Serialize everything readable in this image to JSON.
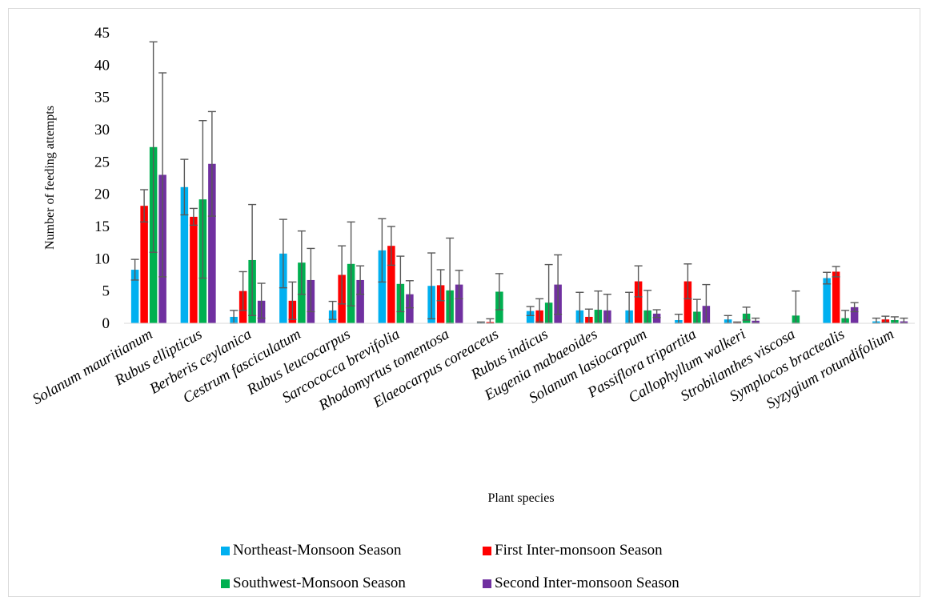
{
  "chart_data": {
    "type": "bar",
    "title": "",
    "xlabel": "Plant species",
    "ylabel": "Number of feeding attempts",
    "ylim": [
      0,
      45
    ],
    "yticks": [
      0,
      5,
      10,
      15,
      20,
      25,
      30,
      35,
      40,
      45
    ],
    "grid": false,
    "legend_position": "bottom",
    "categories": [
      "Solanum mauritianum",
      "Rubus ellipticus",
      "Berberis ceylanica",
      "Cestrum fasciculatum",
      "Rubus leucocarpus",
      "Sarcococca brevifolia",
      "Rhodomyrtus tomentosa",
      "Elaeocarpus coreaceus",
      "Rubus indicus",
      "Eugenia mabaeoides",
      "Solanum lasiocarpum",
      "Passiflora tripartita",
      "Callophyllum walkeri",
      "Strobilanthes viscosa",
      "Symplocos bractealis",
      "Syzygium rotundifolium"
    ],
    "series": [
      {
        "name": "Northeast-Monsoon Season",
        "color": "#00b0f0",
        "values": [
          8.3,
          21.1,
          1.0,
          10.8,
          2.0,
          11.3,
          5.8,
          0.1,
          1.9,
          2.0,
          2.0,
          0.5,
          0.6,
          0.0,
          7.0,
          0.3
        ],
        "errors": [
          1.6,
          4.3,
          1.0,
          5.3,
          1.4,
          4.9,
          5.1,
          0.1,
          0.7,
          2.8,
          2.8,
          0.9,
          0.6,
          0.0,
          0.9,
          0.5
        ]
      },
      {
        "name": "First Inter-monsoon Season",
        "color": "#ff0000",
        "values": [
          18.2,
          16.5,
          5.0,
          3.5,
          7.5,
          12.0,
          5.9,
          0.2,
          2.0,
          1.0,
          6.5,
          6.5,
          0.1,
          0.0,
          8.0,
          0.6
        ],
        "errors": [
          2.5,
          1.3,
          3.0,
          2.9,
          4.5,
          3.0,
          2.4,
          0.5,
          1.8,
          1.2,
          2.4,
          2.7,
          0.1,
          0.0,
          0.8,
          0.5
        ]
      },
      {
        "name": "Southwest-Monsoon Season",
        "color": "#00b050",
        "values": [
          27.3,
          19.2,
          9.8,
          9.4,
          9.2,
          6.1,
          5.1,
          4.9,
          3.2,
          2.1,
          2.0,
          1.8,
          1.5,
          1.2,
          0.8,
          0.5
        ],
        "errors": [
          16.3,
          12.2,
          8.6,
          4.9,
          6.5,
          4.3,
          8.1,
          2.8,
          5.9,
          2.9,
          3.1,
          1.9,
          1.0,
          3.8,
          1.2,
          0.5
        ]
      },
      {
        "name": "Second Inter-monsoon Season",
        "color": "#7030a0",
        "values": [
          23.0,
          24.7,
          3.5,
          6.7,
          6.7,
          4.5,
          6.0,
          0.0,
          6.0,
          2.0,
          1.5,
          2.7,
          0.4,
          0.0,
          2.5,
          0.3
        ],
        "errors": [
          15.8,
          8.1,
          2.7,
          4.9,
          2.2,
          2.1,
          2.2,
          0.0,
          4.6,
          2.5,
          0.6,
          3.3,
          0.4,
          0.0,
          0.7,
          0.5
        ]
      }
    ]
  }
}
